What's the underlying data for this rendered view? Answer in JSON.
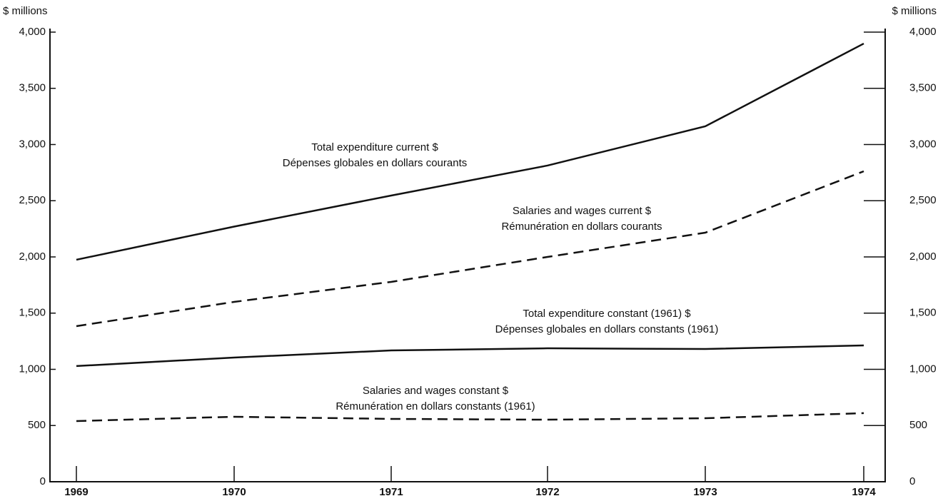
{
  "chart_data": {
    "type": "line",
    "y_label": "$ millions",
    "y2_label": "$ millions",
    "categories": [
      "1969",
      "1970",
      "1971",
      "1972",
      "1973",
      "1974"
    ],
    "series": [
      {
        "name": "Total expenditure current $",
        "name_fr": "Dépenses globales en dollars courants",
        "color": "#111111",
        "dashed": false,
        "values": [
          1975,
          2270,
          2546,
          2813,
          3162,
          3898
        ]
      },
      {
        "name": "Salaries and wages current $",
        "name_fr": "Rémunération en dollars courants",
        "color": "#111111",
        "dashed": true,
        "values": [
          1384,
          1600,
          1778,
          2000,
          2216,
          2762
        ]
      },
      {
        "name": "Total expenditure constant (1961) $",
        "name_fr": "Dépenses globales en dollars constants (1961)",
        "color": "#111111",
        "dashed": false,
        "values": [
          1029,
          1105,
          1168,
          1187,
          1181,
          1213
        ]
      },
      {
        "name": "Salaries and wages constant $",
        "name_fr": "Rémunération en dollars constants (1961)",
        "color": "#111111",
        "dashed": true,
        "values": [
          540,
          578,
          559,
          552,
          565,
          610
        ]
      }
    ],
    "ylim": [
      0,
      4000
    ],
    "yticks": [
      0,
      500,
      {
        "value": 1000,
        "label": "1,000"
      },
      {
        "value": 1500,
        "label": "1,500"
      },
      {
        "value": 2000,
        "label": "2,000"
      },
      {
        "value": 2500,
        "label": "2,500"
      },
      {
        "value": 3000,
        "label": "3,000"
      },
      {
        "value": 3500,
        "label": "3,500"
      },
      {
        "value": 4000,
        "label": "4,000"
      }
    ],
    "y2lim": [
      0,
      4000
    ],
    "y2ticks": [
      0,
      500,
      {
        "value": 1000,
        "label": "1,000"
      },
      {
        "value": 1500,
        "label": "1,500"
      },
      {
        "value": 2000,
        "label": "2,000"
      },
      {
        "value": 2500,
        "label": "2,500"
      },
      {
        "value": 3000,
        "label": "3,000"
      },
      {
        "value": 3500,
        "label": "3,500"
      },
      {
        "value": 4000,
        "label": "4,000"
      }
    ]
  }
}
